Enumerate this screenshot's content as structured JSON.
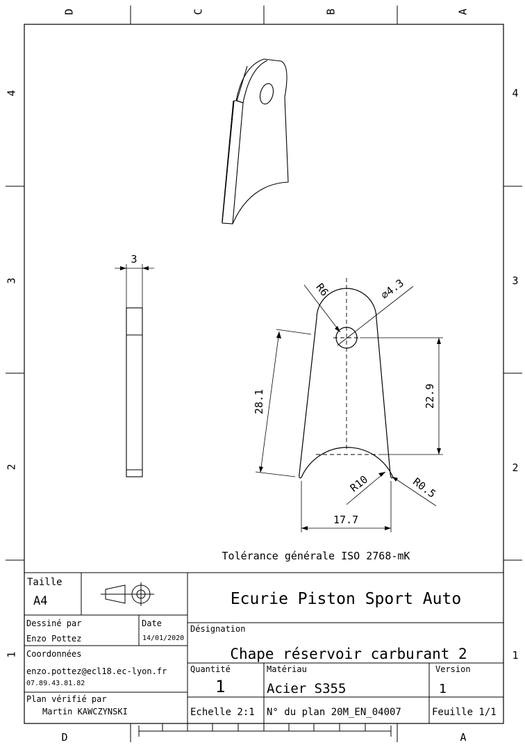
{
  "frame": {
    "columns_top": [
      "D",
      "C",
      "B",
      "A"
    ],
    "rows": [
      "4",
      "3",
      "2",
      "1"
    ],
    "columns_bottom": [
      "D",
      "A"
    ]
  },
  "dimensions": {
    "thickness": "3",
    "radius_top": "R6",
    "hole_diameter": "⌀4.3",
    "height_total": "28.1",
    "height_to_arc": "22.9",
    "radius_arc": "R10",
    "radius_fillet": "R0.5",
    "width_bottom": "17.7"
  },
  "tolerance_note": "Tolérance générale ISO 2768-mK",
  "title_block": {
    "size_label": "Taille",
    "size_value": "A4",
    "company": "Ecurie Piston Sport Auto",
    "drawn_by_label": "Dessiné par",
    "drawn_by_value": "Enzo Pottez",
    "date_label": "Date",
    "date_value": "14/01/2020",
    "designation_label": "Désignation",
    "designation_value": "Chape réservoir carburant 2",
    "contact_label": "Coordonnées",
    "contact_email": "enzo.pottez@ecl18.ec-lyon.fr",
    "contact_phone": "07.89.43.81.82",
    "checked_label": "Plan vérifié par",
    "checked_value": "Martin KAWCZYNSKI",
    "quantity_label": "Quantité",
    "quantity_value": "1",
    "material_label": "Matériau",
    "material_value": "Acier S355",
    "version_label": "Version",
    "version_value": "1",
    "scale": "Echelle 2:1",
    "drawing_number": "N° du plan  20M_EN_04007",
    "sheet": "Feuille 1/1"
  }
}
